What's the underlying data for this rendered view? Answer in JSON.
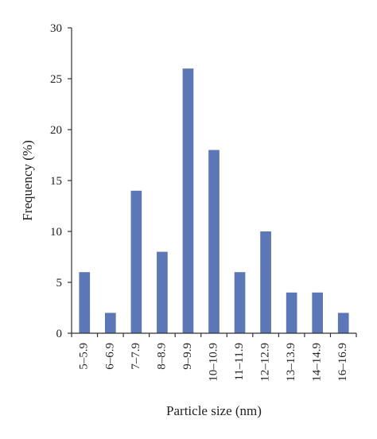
{
  "chart_data": {
    "type": "bar",
    "xlabel": "Particle size (nm)",
    "ylabel": "Frequency (%)",
    "ylim": [
      0,
      30
    ],
    "yticks": [
      "0",
      "5",
      "10",
      "15",
      "20",
      "25",
      "30"
    ],
    "categories": [
      "5–5.9",
      "6–6.9",
      "7–7.9",
      "8–8.9",
      "9–9.9",
      "10–10.9",
      "11–11.9",
      "12–12.9",
      "13–13.9",
      "14–14.9",
      "16–16.9"
    ],
    "values": [
      6,
      2,
      14,
      8,
      26,
      18,
      6,
      10,
      4,
      4,
      2
    ],
    "bar_color": "#5b77b8",
    "axis_color": "#333333",
    "grid": false,
    "legend": false
  }
}
